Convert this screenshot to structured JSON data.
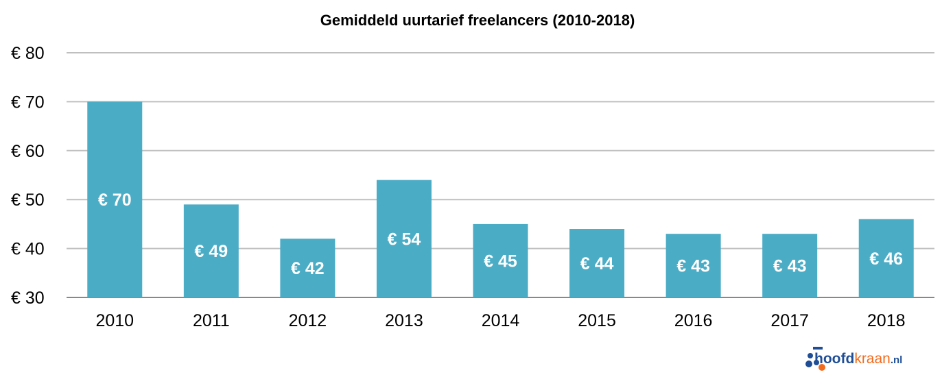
{
  "chart_data": {
    "type": "bar",
    "title": "Gemiddeld uurtarief freelancers (2010-2018)",
    "xlabel": "",
    "ylabel": "",
    "categories": [
      "2010",
      "2011",
      "2012",
      "2013",
      "2014",
      "2015",
      "2016",
      "2017",
      "2018"
    ],
    "values": [
      70,
      49,
      42,
      54,
      45,
      44,
      43,
      43,
      46
    ],
    "data_labels": [
      "€ 70",
      "€ 49",
      "€ 42",
      "€ 54",
      "€ 45",
      "€ 44",
      "€ 43",
      "€ 43",
      "€ 46"
    ],
    "ylim": [
      30,
      80
    ],
    "yticks": [
      30,
      40,
      50,
      60,
      70,
      80
    ],
    "ytick_labels": [
      "€ 30",
      "€ 40",
      "€ 50",
      "€ 60",
      "€ 70",
      "€ 80"
    ],
    "grid": true,
    "legend": "none",
    "bar_color": "#4BACC6"
  },
  "logo": {
    "text_main": "hoofd",
    "text_accent": "kraan",
    "text_tld": ".nl",
    "colors": {
      "blue": "#1F4E96",
      "orange": "#F26B1D"
    }
  }
}
